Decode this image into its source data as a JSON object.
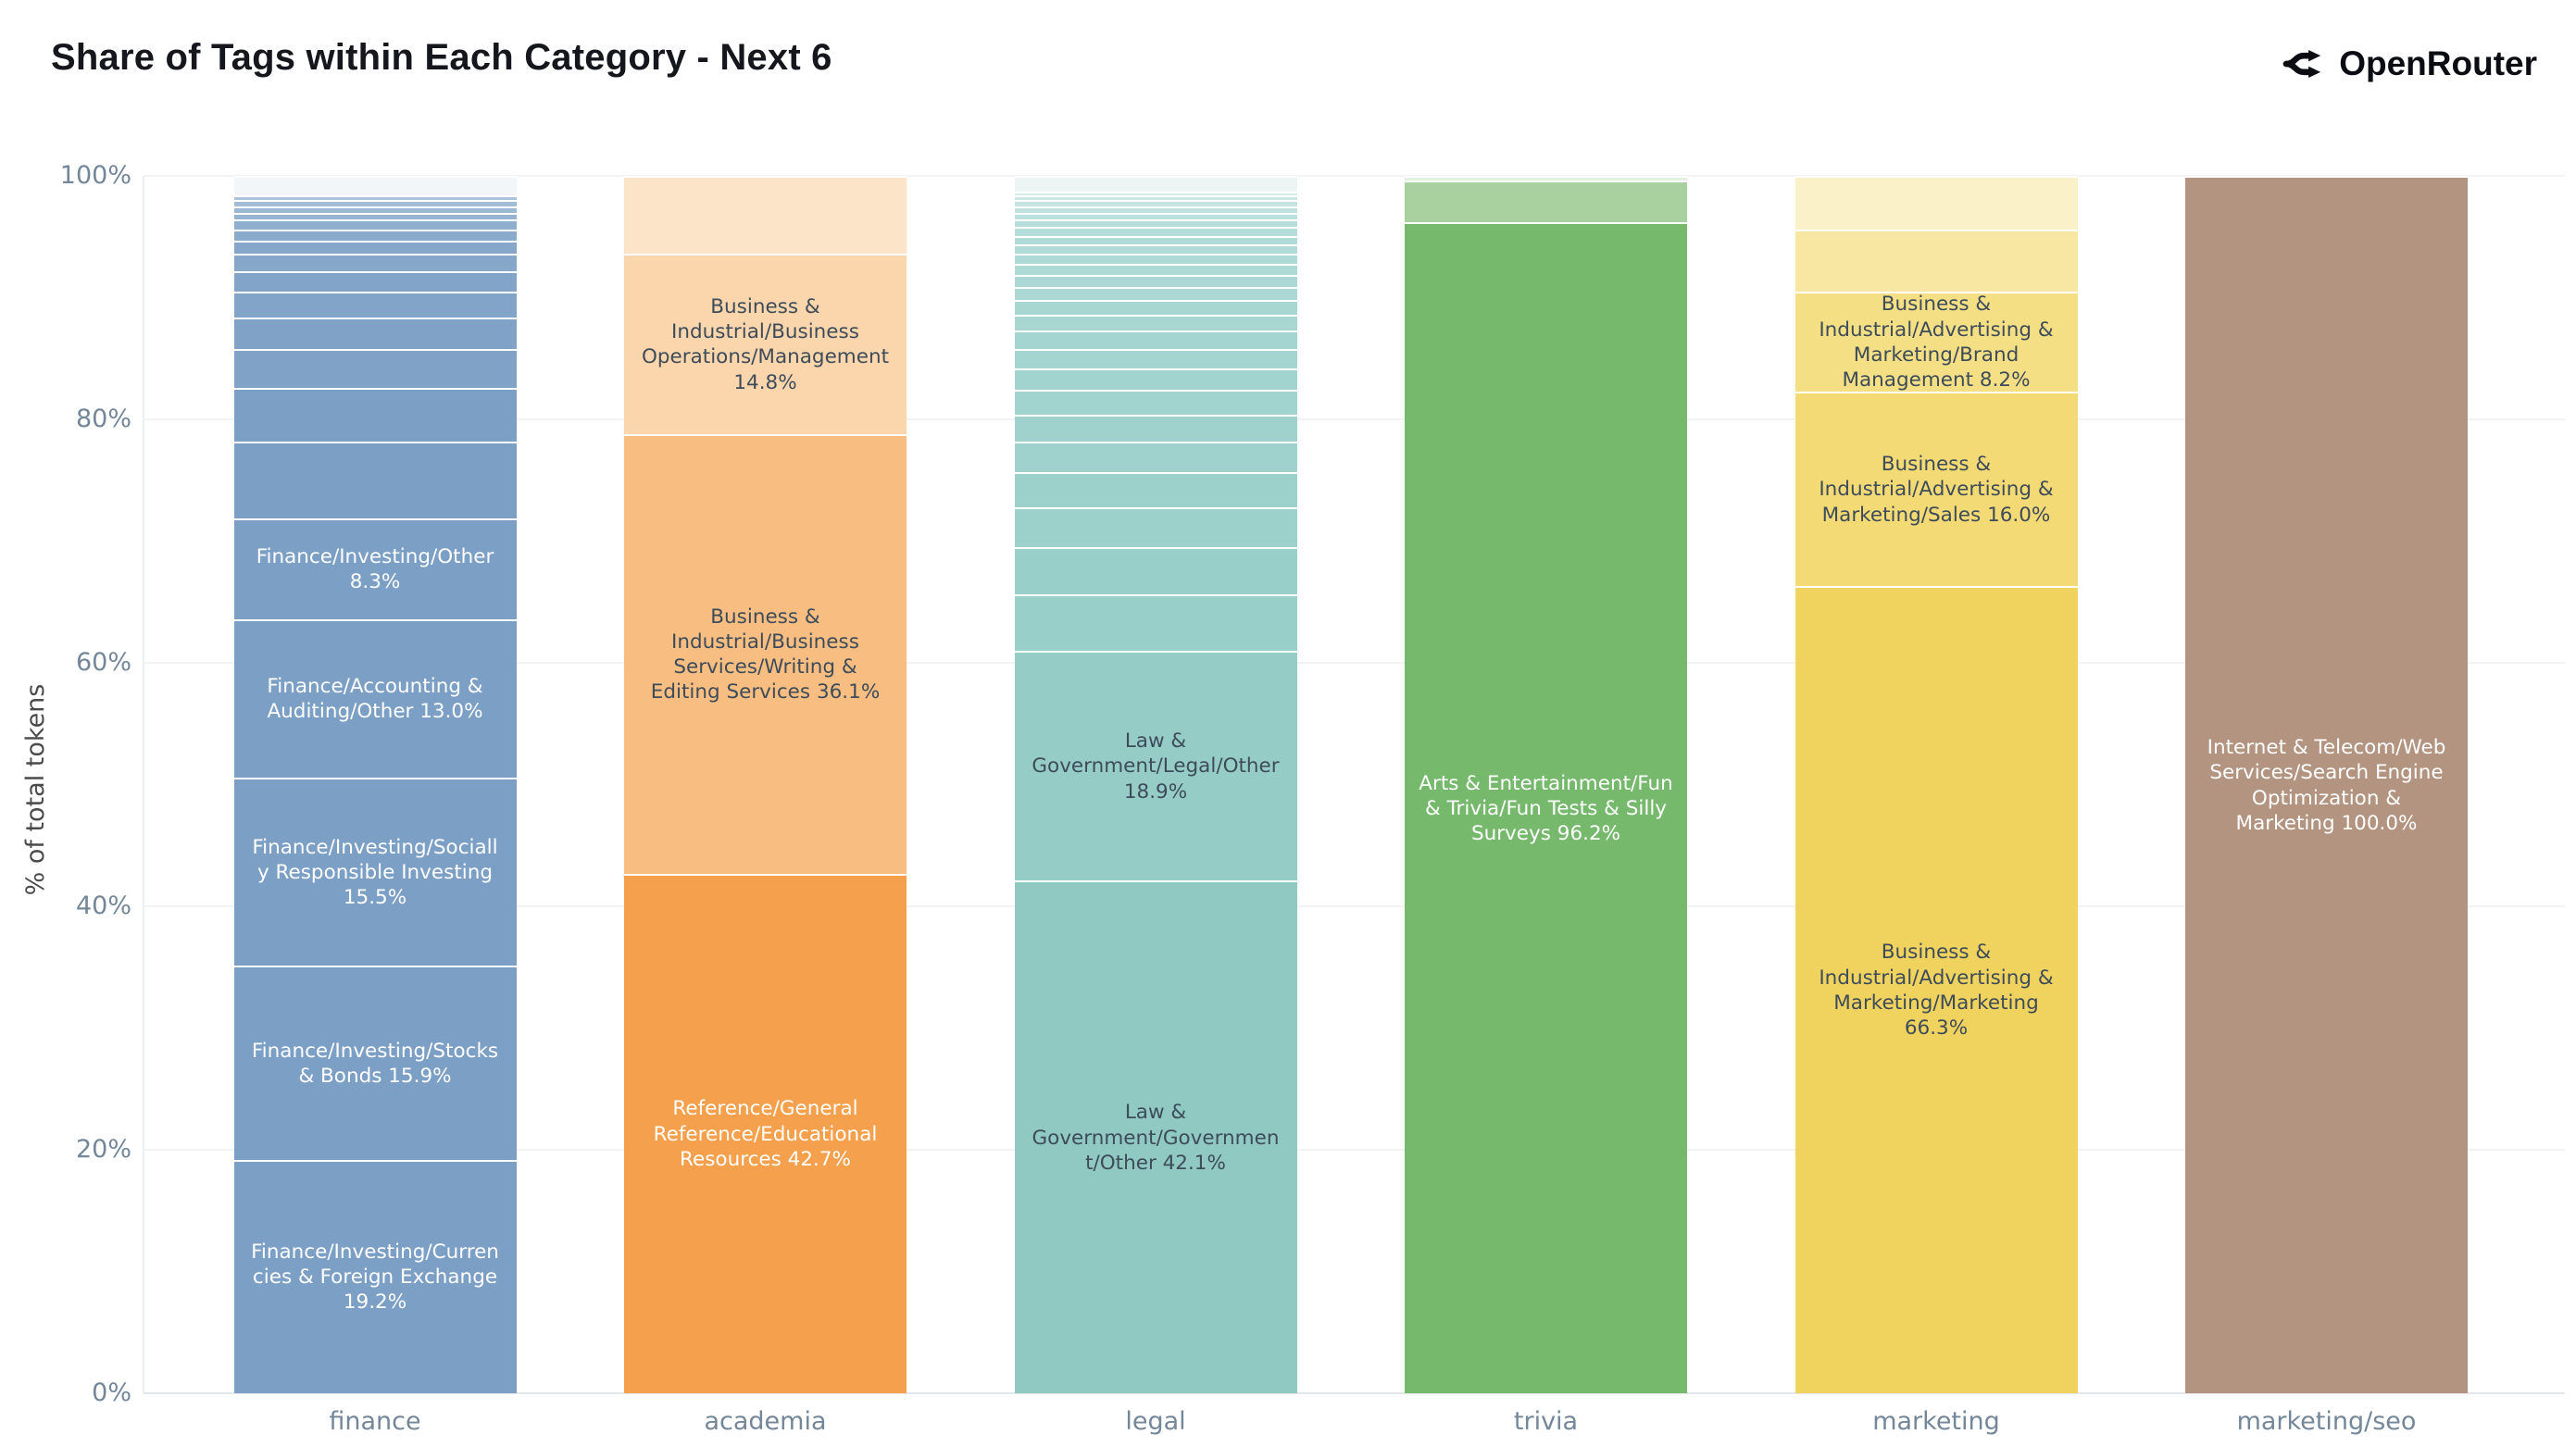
{
  "title": "Share of Tags within Each Category - Next 6",
  "brand": {
    "name": "OpenRouter",
    "icon": "openrouter-branch-icon"
  },
  "y_axis": {
    "title": "% of total tokens",
    "ticks": [
      {
        "label": "0%",
        "value": 0
      },
      {
        "label": "20%",
        "value": 20
      },
      {
        "label": "40%",
        "value": 40
      },
      {
        "label": "60%",
        "value": 60
      },
      {
        "label": "80%",
        "value": 80
      },
      {
        "label": "100%",
        "value": 100
      }
    ]
  },
  "chart_data": {
    "type": "bar",
    "stacked": true,
    "title": "Share of Tags within Each Category - Next 6",
    "xlabel": "",
    "ylabel": "% of total tokens",
    "ylim": [
      0,
      100
    ],
    "grid": true,
    "legend": "none",
    "categories": [
      "finance",
      "academia",
      "legal",
      "trivia",
      "marketing",
      "marketing/seo"
    ],
    "bars": [
      {
        "category": "finance",
        "segments": [
          {
            "text": "Finance/Investing/Currencies & Foreign Exchange 19.2%",
            "value": 19.2,
            "color": "#7c9fc5",
            "text_color": "#ffffff"
          },
          {
            "text": "Finance/Investing/Stocks & Bonds 15.9%",
            "value": 15.9,
            "color": "#7c9fc5",
            "text_color": "#ffffff"
          },
          {
            "text": "Finance/Investing/Socially Responsible Investing 15.5%",
            "value": 15.5,
            "color": "#7c9fc5",
            "text_color": "#ffffff"
          },
          {
            "text": "Finance/Accounting & Auditing/Other 13.0%",
            "value": 13.0,
            "color": "#7c9fc5",
            "text_color": "#ffffff"
          },
          {
            "text": "Finance/Investing/Other 8.3%",
            "value": 8.3,
            "color": "#7c9fc5",
            "text_color": "#ffffff"
          },
          {
            "value": 6.3,
            "color": "#7c9fc5"
          },
          {
            "value": 4.4,
            "color": "#7c9fc5"
          },
          {
            "value": 3.2,
            "color": "#7fa2c6"
          },
          {
            "value": 2.6,
            "color": "#7fa2c6"
          },
          {
            "value": 2.1,
            "color": "#82a4c8"
          },
          {
            "value": 1.7,
            "color": "#82a4c8"
          },
          {
            "value": 1.4,
            "color": "#86a7c9"
          },
          {
            "value": 1.1,
            "color": "#86a7c9"
          },
          {
            "value": 0.9,
            "color": "#8babcc"
          },
          {
            "value": 0.8,
            "color": "#90afce"
          },
          {
            "value": 0.6,
            "color": "#96b3d1"
          },
          {
            "value": 0.5,
            "color": "#9cb8d3"
          },
          {
            "value": 0.5,
            "color": "#a3bdd7"
          },
          {
            "value": 0.4,
            "color": "#abc3da"
          },
          {
            "value": 1.6,
            "color": "#f2f6f9"
          }
        ]
      },
      {
        "category": "academia",
        "segments": [
          {
            "text": "Reference/General Reference/Educational Resources 42.7%",
            "value": 42.7,
            "color": "#f5a04c",
            "text_color": "#ffffff"
          },
          {
            "text": "Business & Industrial/Business Services/Writing & Editing Services 36.1%",
            "value": 36.1,
            "color": "#f8bd81",
            "text_color": "#3e4c5a"
          },
          {
            "text": "Business & Industrial/Business Operations/Management 14.8%",
            "value": 14.8,
            "color": "#fbd5ab",
            "text_color": "#3e4c5a"
          },
          {
            "value": 6.4,
            "color": "#fce4c9"
          }
        ]
      },
      {
        "category": "legal",
        "segments": [
          {
            "text": "Law & Government/Government/Other 42.1%",
            "value": 42.1,
            "color": "#8fc9c2",
            "text_color": "#3e4c5a"
          },
          {
            "text": "Law & Government/Legal/Other 18.9%",
            "value": 18.9,
            "color": "#95ccc6",
            "text_color": "#3e4c5a"
          },
          {
            "value": 4.6,
            "color": "#99cfc9"
          },
          {
            "value": 3.9,
            "color": "#99cfc9"
          },
          {
            "value": 3.3,
            "color": "#9cd1cb"
          },
          {
            "value": 2.9,
            "color": "#9cd1cb"
          },
          {
            "value": 2.5,
            "color": "#9fd2cd"
          },
          {
            "value": 2.2,
            "color": "#9fd2cd"
          },
          {
            "value": 2.0,
            "color": "#a2d4cf"
          },
          {
            "value": 1.8,
            "color": "#a2d4cf"
          },
          {
            "value": 1.6,
            "color": "#a5d5d0"
          },
          {
            "value": 1.5,
            "color": "#a5d5d0"
          },
          {
            "value": 1.3,
            "color": "#a8d7d2"
          },
          {
            "value": 1.2,
            "color": "#a8d7d2"
          },
          {
            "value": 1.1,
            "color": "#abd8d4"
          },
          {
            "value": 1.0,
            "color": "#abd8d4"
          },
          {
            "value": 0.9,
            "color": "#aedad6"
          },
          {
            "value": 0.8,
            "color": "#aedad6"
          },
          {
            "value": 0.8,
            "color": "#b1dbd7"
          },
          {
            "value": 0.7,
            "color": "#b1dbd7"
          },
          {
            "value": 0.7,
            "color": "#b5ddd9"
          },
          {
            "value": 0.6,
            "color": "#b8dedb"
          },
          {
            "value": 0.6,
            "color": "#bce0dd"
          },
          {
            "value": 0.5,
            "color": "#c0e2df"
          },
          {
            "value": 0.5,
            "color": "#c5e4e1"
          },
          {
            "value": 0.4,
            "color": "#cbe7e4"
          },
          {
            "value": 0.3,
            "color": "#d2eae8"
          },
          {
            "value": 1.3,
            "color": "#edf5f4"
          }
        ]
      },
      {
        "category": "trivia",
        "segments": [
          {
            "text": "Arts & Entertainment/Fun & Trivia/Fun Tests & Silly Surveys 96.2%",
            "value": 96.2,
            "color": "#76b96d",
            "text_color": "#ffffff"
          },
          {
            "value": 3.4,
            "color": "#a9d19f"
          },
          {
            "value": 0.4,
            "color": "#e3efe0"
          }
        ]
      },
      {
        "category": "marketing",
        "segments": [
          {
            "text": "Business & Industrial/Advertising & Marketing/Marketing 66.3%",
            "value": 66.3,
            "color": "#f0d35e",
            "text_color": "#3e4c5a"
          },
          {
            "text": "Business & Industrial/Advertising & Marketing/Sales 16.0%",
            "value": 16.0,
            "color": "#f3da75",
            "text_color": "#3e4c5a"
          },
          {
            "text": "Business & Industrial/Advertising & Marketing/Brand Management 8.2%",
            "value": 8.2,
            "color": "#f5df85",
            "text_color": "#3e4c5a"
          },
          {
            "value": 5.1,
            "color": "#f8e7a2"
          },
          {
            "value": 4.4,
            "color": "#fbf1c8"
          }
        ]
      },
      {
        "category": "marketing/seo",
        "segments": [
          {
            "text": "Internet & Telecom/Web Services/Search Engine Optimization & Marketing 100.0%",
            "value": 100.0,
            "color": "#b39481",
            "text_color": "#ffffff"
          }
        ]
      }
    ]
  }
}
